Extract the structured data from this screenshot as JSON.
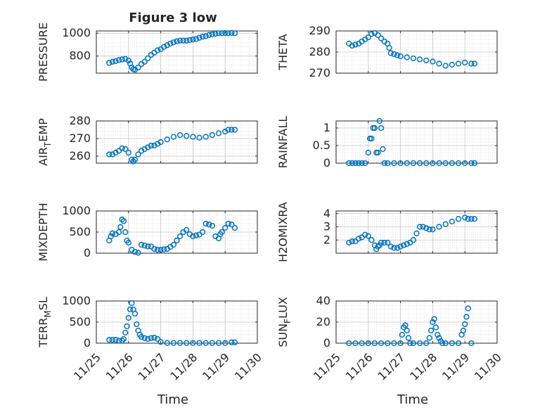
{
  "figure": {
    "title": "Figure 3 low",
    "xlabel": "Time",
    "x_ticks": [
      "11/25",
      "11/26",
      "11/27",
      "11/28",
      "11/29",
      "11/30"
    ],
    "marker_color": "#0072BD",
    "grid_color": "#d9d9d9"
  },
  "chart_data": [
    {
      "type": "scatter",
      "name": "PRESSURE",
      "ylabel": "PRESSURE",
      "xlim": [
        25,
        30
      ],
      "ylim": [
        650,
        1020
      ],
      "yticks": [
        800,
        1000
      ],
      "x": [
        25.4,
        25.5,
        25.6,
        25.7,
        25.8,
        25.9,
        26.0,
        26.05,
        26.1,
        26.15,
        26.2,
        26.3,
        26.4,
        26.5,
        26.6,
        26.7,
        26.8,
        26.9,
        27.0,
        27.1,
        27.2,
        27.3,
        27.4,
        27.5,
        27.6,
        27.7,
        27.8,
        27.9,
        28.0,
        28.1,
        28.2,
        28.3,
        28.4,
        28.5,
        28.6,
        28.7,
        28.8,
        28.9,
        29.0,
        29.1,
        29.2,
        29.3
      ],
      "y": [
        740,
        750,
        755,
        765,
        770,
        775,
        760,
        735,
        700,
        685,
        680,
        700,
        730,
        750,
        780,
        810,
        830,
        850,
        860,
        880,
        895,
        910,
        920,
        930,
        935,
        935,
        935,
        940,
        945,
        950,
        960,
        970,
        975,
        985,
        990,
        995,
        1000,
        1000,
        1002,
        1000,
        1002,
        1000
      ]
    },
    {
      "type": "scatter",
      "name": "THETA",
      "ylabel": "THETA",
      "xlim": [
        25,
        30
      ],
      "ylim": [
        270,
        290
      ],
      "yticks": [
        270,
        280,
        290
      ],
      "x": [
        25.4,
        25.5,
        25.6,
        25.7,
        25.8,
        25.9,
        26.0,
        26.1,
        26.2,
        26.3,
        26.4,
        26.5,
        26.6,
        26.65,
        26.7,
        26.8,
        26.9,
        27.0,
        27.2,
        27.4,
        27.6,
        27.8,
        28.0,
        28.2,
        28.4,
        28.6,
        28.8,
        29.0,
        29.2,
        29.3
      ],
      "y": [
        284,
        283,
        283.5,
        284,
        285,
        286,
        287,
        288.5,
        289,
        288,
        286.5,
        285,
        284,
        282,
        279.5,
        279,
        278.5,
        278,
        277.5,
        277,
        276.5,
        276,
        275.5,
        274.5,
        273.5,
        274,
        274.5,
        275,
        274.5,
        274.5
      ]
    },
    {
      "type": "scatter",
      "name": "AIR_TEMP",
      "ylabel": "AIR_TEMP",
      "xlim": [
        25,
        30
      ],
      "ylim": [
        256,
        280
      ],
      "yticks": [
        260,
        270,
        280
      ],
      "x": [
        25.4,
        25.5,
        25.6,
        25.7,
        25.8,
        25.9,
        26.0,
        26.1,
        26.15,
        26.2,
        26.3,
        26.4,
        26.5,
        26.6,
        26.7,
        26.8,
        26.9,
        27.0,
        27.2,
        27.4,
        27.6,
        27.8,
        28.0,
        28.2,
        28.4,
        28.6,
        28.8,
        29.0,
        29.1,
        29.2,
        29.3
      ],
      "y": [
        261,
        261,
        262,
        263,
        264.5,
        264,
        262,
        258,
        257,
        258,
        261,
        263,
        264,
        265,
        266,
        266,
        267,
        268,
        269.5,
        271,
        272,
        271.5,
        271,
        270.5,
        271,
        272,
        273,
        274,
        275,
        275,
        275
      ]
    },
    {
      "type": "scatter",
      "name": "RAINFALL",
      "ylabel": "RAINFALL",
      "xlim": [
        25,
        30
      ],
      "ylim": [
        0,
        1.2
      ],
      "yticks": [
        0,
        0.5,
        1
      ],
      "x": [
        25.4,
        25.5,
        25.6,
        25.7,
        25.8,
        25.9,
        26.0,
        26.05,
        26.1,
        26.15,
        26.2,
        26.25,
        26.3,
        26.35,
        26.4,
        26.45,
        26.5,
        26.6,
        26.8,
        27.0,
        27.2,
        27.4,
        27.6,
        27.8,
        28.0,
        28.2,
        28.4,
        28.6,
        28.8,
        29.0,
        29.2,
        29.3
      ],
      "y": [
        0,
        0,
        0,
        0,
        0,
        0,
        0.3,
        0.7,
        0.7,
        1.0,
        1.0,
        0.3,
        0.3,
        1.2,
        1.0,
        0.4,
        0,
        0,
        0,
        0,
        0,
        0,
        0,
        0,
        0,
        0,
        0,
        0,
        0,
        0,
        0,
        0
      ]
    },
    {
      "type": "scatter",
      "name": "MIXDEPTH",
      "ylabel": "MIXDEPTH",
      "xlim": [
        25,
        30
      ],
      "ylim": [
        0,
        1000
      ],
      "yticks": [
        0,
        500,
        1000
      ],
      "x": [
        25.4,
        25.45,
        25.5,
        25.6,
        25.7,
        25.75,
        25.8,
        25.85,
        25.9,
        25.95,
        26.0,
        26.1,
        26.2,
        26.3,
        26.4,
        26.5,
        26.6,
        26.7,
        26.8,
        26.9,
        27.0,
        27.1,
        27.2,
        27.3,
        27.4,
        27.5,
        27.6,
        27.7,
        27.8,
        27.9,
        28.0,
        28.1,
        28.2,
        28.3,
        28.4,
        28.5,
        28.6,
        28.7,
        28.8,
        28.85,
        28.9,
        29.0,
        29.1,
        29.2,
        29.3
      ],
      "y": [
        300,
        400,
        470,
        450,
        500,
        620,
        800,
        760,
        500,
        300,
        250,
        80,
        30,
        10,
        200,
        180,
        160,
        160,
        100,
        80,
        80,
        90,
        100,
        150,
        200,
        300,
        400,
        500,
        550,
        450,
        400,
        420,
        440,
        500,
        700,
        680,
        650,
        400,
        350,
        450,
        500,
        600,
        700,
        680,
        600
      ]
    },
    {
      "type": "scatter",
      "name": "H2OMIXRA",
      "ylabel": "H2OMIXRA",
      "xlim": [
        25,
        30
      ],
      "ylim": [
        1,
        4.2
      ],
      "yticks": [
        2,
        3,
        4
      ],
      "x": [
        25.4,
        25.5,
        25.6,
        25.7,
        25.8,
        25.9,
        26.0,
        26.1,
        26.2,
        26.25,
        26.3,
        26.35,
        26.4,
        26.5,
        26.6,
        26.7,
        26.8,
        26.9,
        27.0,
        27.1,
        27.2,
        27.3,
        27.4,
        27.5,
        27.6,
        27.7,
        27.8,
        27.9,
        28.0,
        28.2,
        28.4,
        28.6,
        28.8,
        29.0,
        29.1,
        29.2,
        29.3
      ],
      "y": [
        1.8,
        1.9,
        1.9,
        2.1,
        2.2,
        2.4,
        2.3,
        2.0,
        1.6,
        1.3,
        1.5,
        1.6,
        1.8,
        1.8,
        1.8,
        1.5,
        1.4,
        1.4,
        1.5,
        1.6,
        1.7,
        1.8,
        2.0,
        2.5,
        3.0,
        3.0,
        2.9,
        2.8,
        2.8,
        3.0,
        3.2,
        3.4,
        3.6,
        3.7,
        3.6,
        3.6,
        3.6
      ]
    },
    {
      "type": "scatter",
      "name": "TERR_MSL",
      "ylabel": "TERR_MSL",
      "xlim": [
        25,
        30
      ],
      "ylim": [
        0,
        1000
      ],
      "yticks": [
        0,
        500,
        1000
      ],
      "x": [
        25.4,
        25.5,
        25.6,
        25.7,
        25.8,
        25.85,
        25.9,
        25.95,
        26.0,
        26.05,
        26.1,
        26.15,
        26.2,
        26.25,
        26.3,
        26.35,
        26.4,
        26.5,
        26.6,
        26.7,
        26.8,
        26.9,
        27.0,
        27.2,
        27.4,
        27.6,
        27.8,
        28.0,
        28.2,
        28.4,
        28.6,
        28.8,
        29.0,
        29.2,
        29.3
      ],
      "y": [
        80,
        80,
        80,
        60,
        60,
        100,
        250,
        400,
        600,
        800,
        950,
        800,
        700,
        450,
        300,
        200,
        150,
        120,
        100,
        120,
        130,
        100,
        30,
        5,
        5,
        5,
        5,
        5,
        5,
        5,
        5,
        5,
        5,
        20,
        20
      ]
    },
    {
      "type": "scatter",
      "name": "SUN_FLUX",
      "ylabel": "SUN_FLUX",
      "xlim": [
        25,
        30
      ],
      "ylim": [
        0,
        40
      ],
      "yticks": [
        0,
        20,
        40
      ],
      "x": [
        25.4,
        25.6,
        25.8,
        26.0,
        26.2,
        26.4,
        26.6,
        26.8,
        27.0,
        27.05,
        27.1,
        27.15,
        27.2,
        27.25,
        27.3,
        27.4,
        27.6,
        27.8,
        27.9,
        27.95,
        28.0,
        28.05,
        28.1,
        28.15,
        28.2,
        28.25,
        28.3,
        28.4,
        28.6,
        28.8,
        28.9,
        28.95,
        29.0,
        29.05,
        29.1,
        29.2
      ],
      "y": [
        0,
        0,
        0,
        0,
        0,
        0,
        0,
        0,
        0,
        8,
        15,
        17,
        12,
        5,
        0,
        0,
        0,
        0,
        5,
        12,
        20,
        23,
        15,
        8,
        5,
        2,
        0,
        0,
        0,
        0,
        8,
        12,
        18,
        25,
        33,
        0
      ]
    }
  ]
}
